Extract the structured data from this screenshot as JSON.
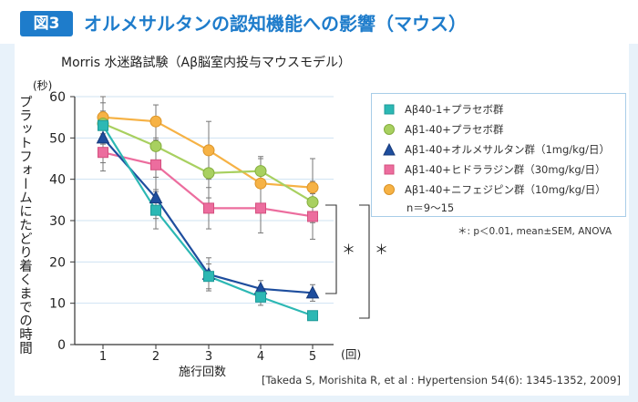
{
  "header": {
    "badge": "図3",
    "title": "オルメサルタンの認知機能への影響（マウス）"
  },
  "chart_subtitle": "Morris 水迷路試験（Aβ脳室内投与マウスモデル）",
  "legend_n": "n＝9～15",
  "stats_note": "＊: p＜0.01, mean±SEM, ANOVA",
  "citation": "[Takeda S, Morishita R, et al : Hypertension 54(6): 1345-1352, 2009]",
  "colors": {
    "badge_bg": "#1e7ccb",
    "background": "#e8f2fa"
  },
  "chart_data": {
    "type": "line",
    "title": "Morris 水迷路試験（Aβ脳室内投与マウスモデル）",
    "xlabel": "施行回数",
    "x_unit": "(回)",
    "ylabel": "プラットフォームにたどり着くまでの時間",
    "y_unit": "(秒)",
    "ylim": [
      0,
      60
    ],
    "y_ticks": [
      0,
      10,
      20,
      30,
      40,
      50,
      60
    ],
    "x": [
      1,
      2,
      3,
      4,
      5
    ],
    "x_tick_labels": [
      "1",
      "2",
      "3",
      "4",
      "5"
    ],
    "series": [
      {
        "name": "Aβ40-1+プラセボ群",
        "marker": "square",
        "color": "#2cb8b4",
        "stroke": "#1e9a98",
        "values": [
          53,
          32.5,
          16.5,
          11.5,
          7
        ],
        "errors": [
          3.5,
          4.5,
          3,
          2,
          1
        ]
      },
      {
        "name": "Aβ1-40+プラセボ群",
        "marker": "circle",
        "color": "#a8d060",
        "stroke": "#84ae3e",
        "values": [
          53.5,
          48,
          41.5,
          42,
          34.5
        ],
        "errors": [
          5,
          5,
          6,
          3.5,
          5
        ]
      },
      {
        "name": "Aβ1-40+オルメサルタン群（1mg/kg/日）",
        "marker": "triangle",
        "color": "#1e4e9e",
        "stroke": "#16397a",
        "values": [
          50,
          35.5,
          17,
          13.5,
          12.5
        ],
        "errors": [
          6,
          5,
          4,
          2,
          2
        ]
      },
      {
        "name": "Aβ1-40+ヒドララジン群（30mg/kg/日）",
        "marker": "square",
        "color": "#ec6d9e",
        "stroke": "#d4507f",
        "values": [
          46.5,
          43.5,
          33,
          33,
          31
        ],
        "errors": [
          4.5,
          6,
          5,
          6,
          5.5
        ]
      },
      {
        "name": "Aβ1-40+ニフェジピン群（10mg/kg/日）",
        "marker": "circle",
        "color": "#f6b245",
        "stroke": "#db9326",
        "values": [
          55,
          54,
          47,
          39,
          38
        ],
        "errors": [
          5,
          4,
          7,
          6,
          7
        ]
      }
    ],
    "annotations": [
      "＊",
      "＊"
    ]
  }
}
